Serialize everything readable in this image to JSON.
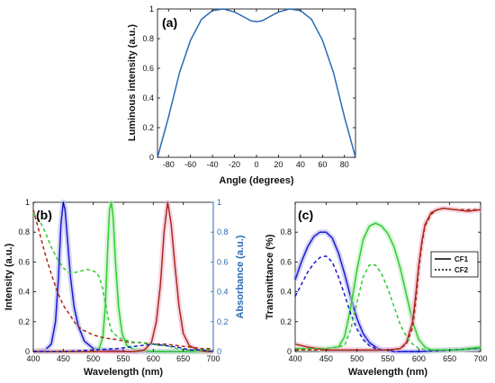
{
  "chart_data": [
    {
      "id": "a",
      "type": "line",
      "panel_label": "(a)",
      "xlabel": "Angle (degrees)",
      "ylabel": "Luminous intensity (a.u.)",
      "xlim": [
        -90,
        90
      ],
      "ylim": [
        0,
        1
      ],
      "xticks": [
        -80,
        -60,
        -40,
        -20,
        0,
        20,
        40,
        60,
        80
      ],
      "yticks": [
        0,
        0.2,
        0.4,
        0.6,
        0.8,
        1
      ],
      "yticklabels": [
        "0",
        "0.2",
        "0.4",
        "0.6",
        "0.8",
        "1"
      ],
      "series": [
        {
          "color": "#2a6ab5",
          "dash": "solid",
          "x": [
            -90,
            -80,
            -70,
            -60,
            -50,
            -40,
            -30,
            -20,
            -10,
            -5,
            0,
            5,
            10,
            20,
            30,
            40,
            50,
            60,
            70,
            80,
            90
          ],
          "y": [
            0,
            0.27,
            0.57,
            0.79,
            0.93,
            0.99,
            1.0,
            0.98,
            0.94,
            0.92,
            0.915,
            0.92,
            0.94,
            0.98,
            1.0,
            0.99,
            0.93,
            0.79,
            0.57,
            0.27,
            0
          ]
        }
      ]
    },
    {
      "id": "b",
      "type": "line",
      "panel_label": "(b)",
      "xlabel": "Wavelength (nm)",
      "ylabel": "Intensity (a.u.)",
      "y2label": "Absorbance (a.u.)",
      "xlim": [
        400,
        700
      ],
      "ylim": [
        0,
        1
      ],
      "xticks": [
        400,
        450,
        500,
        550,
        600,
        650,
        700
      ],
      "yticks": [
        0,
        0.2,
        0.4,
        0.6,
        0.8,
        1
      ],
      "yticklabels": [
        "0",
        "0.2",
        "0.4",
        "0.6",
        "0.8",
        "1"
      ],
      "y2ticklabels": [
        "0",
        "0.2",
        "0.4",
        "0.6",
        "0.8",
        "1"
      ],
      "series": [
        {
          "color": "#1a1acc",
          "dash": "solid",
          "glow": "#b0b0f0",
          "x": [
            400,
            420,
            430,
            437,
            442,
            446,
            450,
            453,
            457,
            462,
            468,
            475,
            485,
            500,
            520,
            560,
            600,
            650,
            700
          ],
          "y": [
            0,
            0.01,
            0.05,
            0.2,
            0.5,
            0.85,
            1.0,
            0.95,
            0.75,
            0.5,
            0.3,
            0.17,
            0.07,
            0.02,
            0.01,
            0,
            0,
            0,
            0
          ]
        },
        {
          "color": "#30cc30",
          "dash": "solid",
          "glow": "#b8ecb8",
          "x": [
            400,
            500,
            510,
            516,
            520,
            524,
            527,
            530,
            533,
            537,
            542,
            548,
            556,
            570,
            600,
            650,
            700
          ],
          "y": [
            0,
            0,
            0.02,
            0.1,
            0.3,
            0.7,
            0.95,
            1.0,
            0.9,
            0.6,
            0.3,
            0.12,
            0.04,
            0.01,
            0,
            0,
            0
          ]
        },
        {
          "color": "#aa2a1a",
          "dash": "solid",
          "glow": "#f0b4cc",
          "x": [
            400,
            570,
            585,
            597,
            605,
            612,
            618,
            624,
            630,
            636,
            643,
            650,
            660,
            675,
            690,
            700
          ],
          "y": [
            0,
            0,
            0.01,
            0.06,
            0.2,
            0.45,
            0.8,
            1.0,
            0.85,
            0.58,
            0.3,
            0.12,
            0.04,
            0.01,
            0,
            0
          ]
        },
        {
          "color": "#aa2a1a",
          "dash": "dashed",
          "x": [
            400,
            410,
            420,
            430,
            440,
            450,
            460,
            470,
            480,
            490,
            500,
            520,
            540,
            560,
            580,
            600,
            620,
            640,
            660,
            680,
            700
          ],
          "y": [
            0.95,
            0.8,
            0.65,
            0.52,
            0.4,
            0.31,
            0.25,
            0.19,
            0.15,
            0.13,
            0.11,
            0.09,
            0.08,
            0.06,
            0.06,
            0.05,
            0.05,
            0.04,
            0.03,
            0.02,
            0.02
          ]
        },
        {
          "color": "#30cc30",
          "dash": "dashed",
          "x": [
            400,
            410,
            420,
            430,
            440,
            450,
            460,
            470,
            480,
            490,
            500,
            505,
            510,
            515,
            520,
            525,
            530,
            540,
            550,
            560,
            570,
            580,
            590,
            600,
            610,
            620,
            630,
            640,
            660,
            680,
            700
          ],
          "y": [
            0.93,
            0.88,
            0.8,
            0.7,
            0.62,
            0.56,
            0.53,
            0.53,
            0.54,
            0.55,
            0.54,
            0.53,
            0.5,
            0.43,
            0.33,
            0.22,
            0.14,
            0.1,
            0.08,
            0.07,
            0.06,
            0.06,
            0.05,
            0.05,
            0.04,
            0.04,
            0.03,
            0.02,
            0.01,
            0.01,
            0.01
          ]
        },
        {
          "color": "#1a1acc",
          "dash": "dashed",
          "x": [
            400,
            450,
            500,
            540,
            560,
            580,
            600,
            620,
            640,
            660,
            680,
            700
          ],
          "y": [
            0,
            0,
            0.01,
            0.02,
            0.03,
            0.04,
            0.05,
            0.04,
            0.03,
            0.01,
            0.01,
            0
          ]
        }
      ]
    },
    {
      "id": "c",
      "type": "line",
      "panel_label": "(c)",
      "xlabel": "Wavelength (nm)",
      "ylabel": "Transmittance (%)",
      "xlim": [
        400,
        700
      ],
      "ylim": [
        0,
        1
      ],
      "xticks": [
        400,
        450,
        500,
        550,
        600,
        650,
        700
      ],
      "yticks": [
        0,
        0.2,
        0.4,
        0.6,
        0.8
      ],
      "yticklabels": [
        "0",
        "0.2",
        "0.4",
        "0.6",
        "0.8"
      ],
      "legend": {
        "position": "center-right",
        "entries": [
          {
            "label": "CF1",
            "dash": "solid"
          },
          {
            "label": "CF2",
            "dash": "dotted"
          }
        ]
      },
      "series": [
        {
          "color": "#1a1acc",
          "dash": "solid",
          "glow": "#b0b0f0",
          "x": [
            400,
            410,
            420,
            430,
            440,
            450,
            460,
            470,
            480,
            490,
            500,
            510,
            520,
            530,
            540,
            550,
            560,
            580,
            600,
            650,
            700
          ],
          "y": [
            0.48,
            0.6,
            0.7,
            0.77,
            0.8,
            0.8,
            0.76,
            0.66,
            0.52,
            0.36,
            0.22,
            0.12,
            0.06,
            0.03,
            0.01,
            0.01,
            0,
            0,
            0,
            0.01,
            0.02
          ]
        },
        {
          "color": "#30cc30",
          "dash": "solid",
          "glow": "#b8ecb8",
          "x": [
            400,
            450,
            470,
            480,
            490,
            500,
            510,
            520,
            530,
            540,
            550,
            560,
            570,
            580,
            590,
            600,
            610,
            620,
            640,
            660,
            680,
            700
          ],
          "y": [
            0.02,
            0.02,
            0.03,
            0.1,
            0.3,
            0.55,
            0.75,
            0.84,
            0.86,
            0.84,
            0.79,
            0.7,
            0.56,
            0.38,
            0.2,
            0.08,
            0.03,
            0.01,
            0.01,
            0.01,
            0.02,
            0.03
          ]
        },
        {
          "color": "#aa2a1a",
          "dash": "solid",
          "glow": "#f0b4cc",
          "x": [
            400,
            420,
            450,
            500,
            550,
            570,
            580,
            590,
            595,
            600,
            605,
            610,
            620,
            630,
            640,
            660,
            680,
            700
          ],
          "y": [
            0.05,
            0.03,
            0.01,
            0.01,
            0.01,
            0.02,
            0.06,
            0.2,
            0.38,
            0.58,
            0.74,
            0.85,
            0.93,
            0.95,
            0.96,
            0.95,
            0.94,
            0.95
          ]
        },
        {
          "color": "#1a1acc",
          "dash": "dashed",
          "x": [
            400,
            410,
            420,
            430,
            440,
            450,
            460,
            470,
            480,
            490,
            500,
            510,
            520,
            530,
            540,
            550,
            560,
            580,
            600,
            650,
            700
          ],
          "y": [
            0.37,
            0.45,
            0.53,
            0.59,
            0.63,
            0.64,
            0.6,
            0.5,
            0.38,
            0.25,
            0.15,
            0.08,
            0.04,
            0.02,
            0.01,
            0.01,
            0,
            0,
            0,
            0.01,
            0.02
          ]
        },
        {
          "color": "#30cc30",
          "dash": "dashed",
          "x": [
            400,
            450,
            480,
            490,
            500,
            510,
            520,
            530,
            540,
            550,
            560,
            570,
            580,
            590,
            600,
            620,
            660,
            700
          ],
          "y": [
            0.02,
            0.02,
            0.04,
            0.15,
            0.33,
            0.5,
            0.58,
            0.58,
            0.52,
            0.42,
            0.3,
            0.18,
            0.1,
            0.05,
            0.02,
            0.01,
            0.01,
            0.02
          ]
        },
        {
          "color": "#aa2a1a",
          "dash": "dashed",
          "x": [
            400,
            450,
            500,
            550,
            570,
            580,
            590,
            595,
            600,
            605,
            610,
            620,
            630,
            640,
            660,
            680,
            700
          ],
          "y": [
            0.01,
            0.01,
            0.01,
            0.01,
            0.02,
            0.05,
            0.16,
            0.33,
            0.55,
            0.72,
            0.84,
            0.92,
            0.95,
            0.96,
            0.95,
            0.95,
            0.95
          ]
        }
      ]
    }
  ]
}
